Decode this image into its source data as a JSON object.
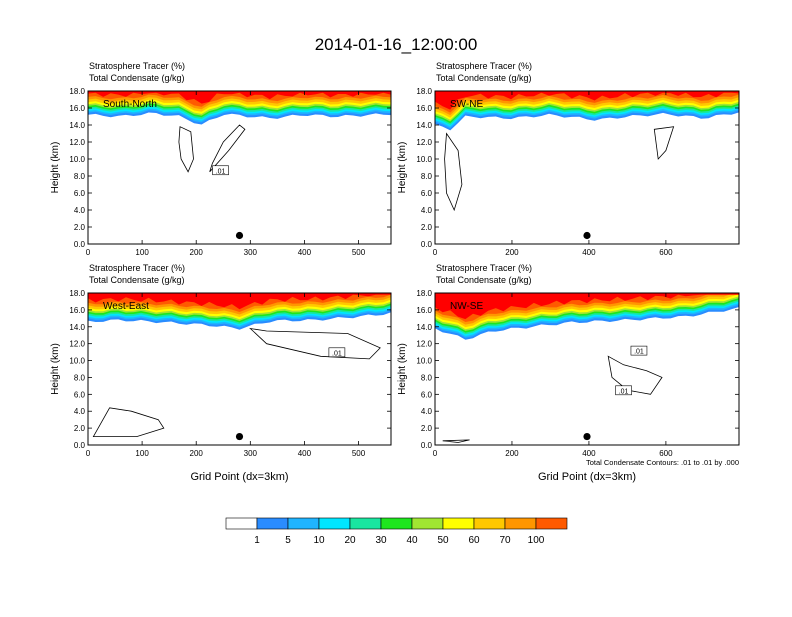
{
  "title": "2014-01-16_12:00:00",
  "contour_note": "Total Condensate Contours: .01 to .01 by .000",
  "point_marker_label": "",
  "colorbar": {
    "levels": [
      "1",
      "5",
      "10",
      "20",
      "30",
      "40",
      "50",
      "60",
      "70",
      "100"
    ],
    "colors": [
      "#ffffff",
      "#2a8cff",
      "#1fb4ff",
      "#00e6ff",
      "#19e6a0",
      "#1ee61e",
      "#a0e632",
      "#ffff00",
      "#ffc800",
      "#ff9600",
      "#ff5a00",
      "#ff0000"
    ]
  },
  "chart_data": [
    {
      "type": "heatmap",
      "panel_label": "South-North",
      "left_label_1": "Stratosphere Tracer   (%)",
      "left_label_2": "Total Condensate   (g/kg)",
      "xlabel": "",
      "ylabel": "Height (km)",
      "xlim": [
        0,
        560
      ],
      "ylim": [
        0,
        18
      ],
      "xticks": [
        "0",
        "100",
        "200",
        "300",
        "400",
        "500"
      ],
      "xtick_values": [
        0,
        100,
        200,
        300,
        400,
        500
      ],
      "yticks": [
        "0.0",
        "2.0",
        "4.0",
        "6.0",
        "8.0",
        "10.0",
        "12.0",
        "14.0",
        "16.0",
        "18.0"
      ],
      "tropopause_km": [
        [
          0,
          15.2
        ],
        [
          60,
          15.0
        ],
        [
          120,
          15.4
        ],
        [
          170,
          15.0
        ],
        [
          210,
          14.0
        ],
        [
          250,
          15.3
        ],
        [
          300,
          15.0
        ],
        [
          340,
          14.8
        ],
        [
          400,
          15.2
        ],
        [
          460,
          15.0
        ],
        [
          560,
          15.3
        ]
      ],
      "contour_labels": [
        ".01"
      ],
      "marker_x": 280
    },
    {
      "type": "heatmap",
      "panel_label": "SW-NE",
      "left_label_1": "Stratosphere Tracer   (%)",
      "left_label_2": "Total Condensate   (g/kg)",
      "xlabel": "",
      "ylabel": "Height (km)",
      "xlim": [
        0,
        790
      ],
      "ylim": [
        0,
        18
      ],
      "xticks": [
        "0",
        "200",
        "400",
        "600"
      ],
      "xtick_values": [
        0,
        200,
        400,
        600
      ],
      "yticks": [
        "0.0",
        "2.0",
        "4.0",
        "6.0",
        "8.0",
        "10.0",
        "12.0",
        "14.0",
        "16.0",
        "18.0"
      ],
      "tropopause_km": [
        [
          0,
          14.0
        ],
        [
          40,
          13.5
        ],
        [
          80,
          15.0
        ],
        [
          200,
          14.8
        ],
        [
          300,
          15.2
        ],
        [
          420,
          14.6
        ],
        [
          500,
          15.0
        ],
        [
          600,
          15.3
        ],
        [
          700,
          14.8
        ],
        [
          790,
          15.5
        ]
      ],
      "contour_labels": [],
      "marker_x": 395
    },
    {
      "type": "heatmap",
      "panel_label": "West-East",
      "left_label_1": "Stratosphere Tracer   (%)",
      "left_label_2": "Total Condensate   (g/kg)",
      "xlabel": "Grid Point (dx=3km)",
      "ylabel": "Height (km)",
      "xlim": [
        0,
        560
      ],
      "ylim": [
        0,
        18
      ],
      "xticks": [
        "0",
        "100",
        "200",
        "300",
        "400",
        "500"
      ],
      "xtick_values": [
        0,
        100,
        200,
        300,
        400,
        500
      ],
      "yticks": [
        "0.0",
        "2.0",
        "4.0",
        "6.0",
        "8.0",
        "10.0",
        "12.0",
        "14.0",
        "16.0",
        "18.0"
      ],
      "tropopause_km": [
        [
          0,
          14.6
        ],
        [
          60,
          14.8
        ],
        [
          150,
          14.5
        ],
        [
          220,
          14.2
        ],
        [
          280,
          13.8
        ],
        [
          340,
          14.7
        ],
        [
          420,
          14.8
        ],
        [
          500,
          15.2
        ],
        [
          560,
          15.6
        ]
      ],
      "contour_labels": [
        ".01"
      ],
      "marker_x": 280
    },
    {
      "type": "heatmap",
      "panel_label": "NW-SE",
      "left_label_1": "Stratosphere Tracer   (%)",
      "left_label_2": "Total Condensate   (g/kg)",
      "xlabel": "Grid Point (dx=3km)",
      "ylabel": "Height (km)",
      "xlim": [
        0,
        790
      ],
      "ylim": [
        0,
        18
      ],
      "xticks": [
        "0",
        "200",
        "400",
        "600"
      ],
      "xtick_values": [
        0,
        200,
        400,
        600
      ],
      "yticks": [
        "0.0",
        "2.0",
        "4.0",
        "6.0",
        "8.0",
        "10.0",
        "12.0",
        "14.0",
        "16.0",
        "18.0"
      ],
      "tropopause_km": [
        [
          0,
          13.8
        ],
        [
          80,
          12.5
        ],
        [
          150,
          13.5
        ],
        [
          250,
          14.0
        ],
        [
          350,
          14.5
        ],
        [
          500,
          14.8
        ],
        [
          650,
          15.2
        ],
        [
          790,
          16.2
        ]
      ],
      "contour_labels": [
        ".01",
        ".01"
      ],
      "marker_x": 395
    }
  ]
}
